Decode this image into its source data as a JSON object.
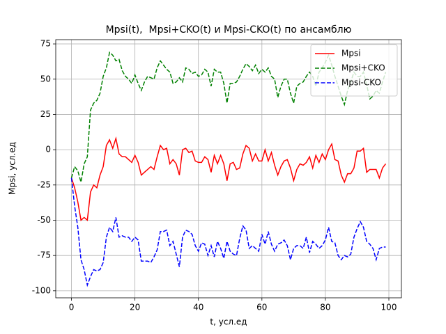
{
  "chart_data": {
    "type": "line",
    "title": "Mpsi(t),  Mpsi+CKO(t) и Mpsi-CKO(t) по ансамблю",
    "xlabel": "t, усл.ед",
    "ylabel": "Mpsi, усл.ед",
    "x": [
      0,
      1,
      2,
      3,
      4,
      5,
      6,
      7,
      8,
      9,
      10,
      11,
      12,
      13,
      14,
      15,
      16,
      17,
      18,
      19,
      20,
      21,
      22,
      23,
      24,
      25,
      26,
      27,
      28,
      29,
      30,
      31,
      32,
      33,
      34,
      35,
      36,
      37,
      38,
      39,
      40,
      41,
      42,
      43,
      44,
      45,
      46,
      47,
      48,
      49,
      50,
      51,
      52,
      53,
      54,
      55,
      56,
      57,
      58,
      59,
      60,
      61,
      62,
      63,
      64,
      65,
      66,
      67,
      68,
      69,
      70,
      71,
      72,
      73,
      74,
      75,
      76,
      77,
      78,
      79,
      80,
      81,
      82,
      83,
      84,
      85,
      86,
      87,
      88,
      89,
      90,
      91,
      92,
      93,
      94,
      95,
      96,
      97,
      98,
      99
    ],
    "series": [
      {
        "name": "Mpsi",
        "color": "#ff0000",
        "dash": "solid",
        "values": [
          -20,
          -27,
          -37,
          -50,
          -48,
          -50,
          -30,
          -25,
          -27,
          -18,
          -12,
          3,
          7,
          1,
          8,
          -3,
          -5,
          -5,
          -7,
          -9,
          -4,
          -9,
          -18,
          -16,
          -14,
          -12,
          -14,
          -5,
          3,
          0,
          1,
          -10,
          -7,
          -10,
          -18,
          0,
          1,
          -2,
          -1,
          -8,
          -9,
          -9,
          -5,
          -7,
          -16,
          -4,
          -10,
          -4,
          -10,
          -22,
          -10,
          -9,
          -14,
          -13,
          -3,
          3,
          1,
          -8,
          -3,
          -8,
          -8,
          0,
          -8,
          -2,
          -11,
          -18,
          -12,
          -8,
          -7,
          -13,
          -22,
          -14,
          -10,
          -11,
          -9,
          -5,
          -13,
          -4,
          -9,
          -3,
          -7,
          0,
          4,
          -7,
          -8,
          -18,
          -23,
          -17,
          -17,
          -13,
          -1,
          -1,
          1,
          -16,
          -14,
          -14,
          -14,
          -20,
          -13,
          -10
        ]
      },
      {
        "name": "Mpsi+CKO",
        "color": "#008000",
        "dash": "dashed",
        "values": [
          -20,
          -12,
          -15,
          -23,
          -10,
          -5,
          28,
          33,
          35,
          40,
          52,
          58,
          69,
          67,
          63,
          64,
          56,
          52,
          50,
          47,
          53,
          47,
          42,
          48,
          52,
          51,
          50,
          58,
          63,
          60,
          57,
          55,
          47,
          48,
          51,
          48,
          58,
          57,
          54,
          55,
          52,
          53,
          57,
          55,
          45,
          57,
          55,
          55,
          47,
          33,
          47,
          47,
          48,
          52,
          57,
          61,
          59,
          56,
          60,
          54,
          57,
          55,
          58,
          52,
          50,
          37,
          45,
          50,
          50,
          40,
          33,
          45,
          47,
          48,
          52,
          55,
          52,
          45,
          55,
          58,
          62,
          67,
          60,
          52,
          45,
          38,
          32,
          42,
          48,
          55,
          52,
          52,
          55,
          46,
          36,
          38,
          42,
          40,
          48,
          55
        ]
      },
      {
        "name": "Mpsi-CKO",
        "color": "#0000ff",
        "dash": "dashed",
        "values": [
          -20,
          -40,
          -55,
          -78,
          -85,
          -96,
          -90,
          -85,
          -86,
          -85,
          -80,
          -62,
          -55,
          -58,
          -48,
          -62,
          -61,
          -62,
          -62,
          -65,
          -62,
          -64,
          -79,
          -79,
          -79,
          -80,
          -76,
          -71,
          -58,
          -58,
          -57,
          -68,
          -65,
          -74,
          -83,
          -62,
          -57,
          -58,
          -60,
          -68,
          -72,
          -66,
          -67,
          -75,
          -68,
          -76,
          -65,
          -70,
          -77,
          -65,
          -72,
          -74,
          -75,
          -63,
          -54,
          -57,
          -70,
          -68,
          -70,
          -72,
          -60,
          -67,
          -58,
          -67,
          -72,
          -67,
          -66,
          -64,
          -68,
          -78,
          -70,
          -68,
          -68,
          -70,
          -62,
          -73,
          -65,
          -67,
          -70,
          -68,
          -64,
          -55,
          -65,
          -66,
          -75,
          -78,
          -75,
          -76,
          -74,
          -62,
          -56,
          -51,
          -55,
          -65,
          -67,
          -70,
          -78,
          -70,
          -69,
          -69
        ]
      }
    ],
    "xlim": [
      -4.95,
      103.95
    ],
    "xticks": [
      0,
      20,
      40,
      60,
      80,
      100
    ],
    "ylim": [
      -105,
      78
    ],
    "yticks": [
      -100,
      -75,
      -50,
      -25,
      0,
      25,
      50,
      75
    ],
    "grid": true,
    "legend": "upper right"
  }
}
